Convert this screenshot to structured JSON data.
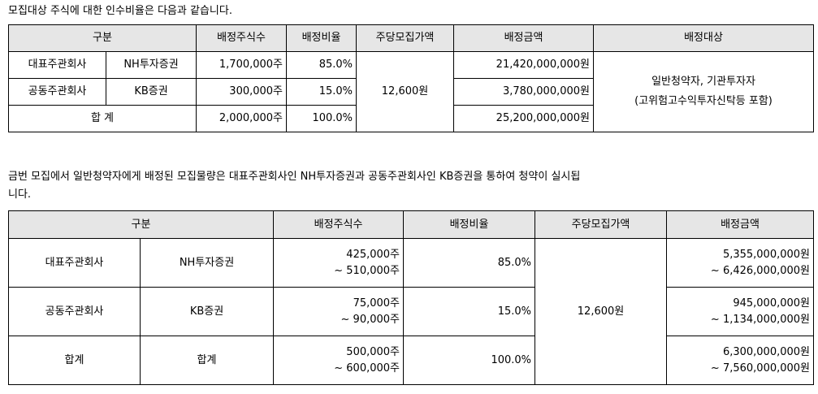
{
  "intro1": "모집대상 주식에 대한 인수비율은 다음과 같습니다.",
  "table1": {
    "headers": [
      "구분",
      "배정주식수",
      "배정비율",
      "주당모집가액",
      "배정금액",
      "배정대상"
    ],
    "rows": [
      {
        "cat": "대표주관회사",
        "firm": "NH투자증권",
        "shares": "1,700,000주",
        "ratio": "85.0%",
        "amount": "21,420,000,000원"
      },
      {
        "cat": "공동주관회사",
        "firm": "KB증권",
        "shares": "300,000주",
        "ratio": "15.0%",
        "amount": "3,780,000,000원"
      }
    ],
    "total": {
      "label": "합 계",
      "shares": "2,000,000주",
      "ratio": "100.0%",
      "amount": "25,200,000,000원"
    },
    "price": "12,600원",
    "target_line1": "일반청약자, 기관투자자",
    "target_line2": "(고위험고수익투자신탁등 포함)"
  },
  "intro2_line1": "금번 모집에서 일반청약자에게 배정된 모집물량은 대표주관회사인 NH투자증권과 공동주관회사인 KB증권을 통하여 청약이 실시됩",
  "intro2_line2": "니다.",
  "table2": {
    "headers": [
      "구분",
      "배정주식수",
      "배정비율",
      "주당모집가액",
      "배정금액"
    ],
    "rows": [
      {
        "cat": "대표주관회사",
        "firm": "NH투자증권",
        "shares_min": "425,000주",
        "shares_max": "~ 510,000주",
        "ratio": "85.0%",
        "amount_min": "5,355,000,000원",
        "amount_max": "~ 6,426,000,000원"
      },
      {
        "cat": "공동주관회사",
        "firm": "KB증권",
        "shares_min": "75,000주",
        "shares_max": "~ 90,000주",
        "ratio": "15.0%",
        "amount_min": "945,000,000원",
        "amount_max": "~ 1,134,000,000원"
      },
      {
        "cat": "합계",
        "firm": "합계",
        "shares_min": "500,000주",
        "shares_max": "~ 600,000주",
        "ratio": "100.0%",
        "amount_min": "6,300,000,000원",
        "amount_max": "~ 7,560,000,000원"
      }
    ],
    "price": "12,600원"
  }
}
